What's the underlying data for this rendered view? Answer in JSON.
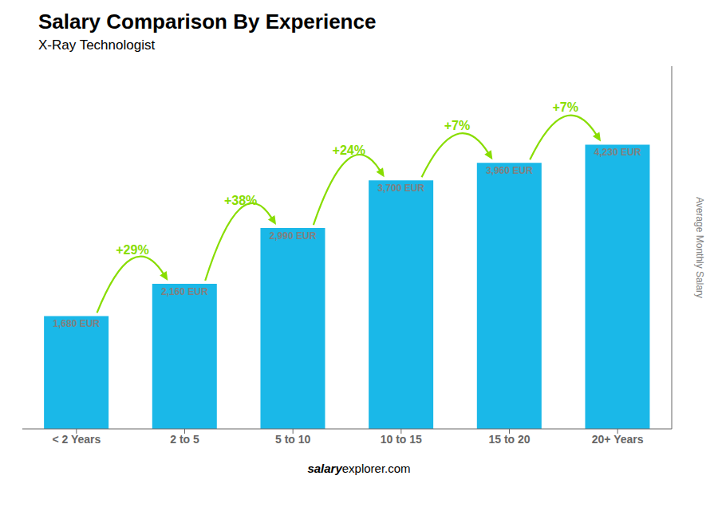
{
  "chart_data": {
    "type": "bar",
    "title": "Salary Comparison By Experience",
    "subtitle": "X-Ray Technologist",
    "y_label": "Average Monthly Salary",
    "categories": [
      "< 2 Years",
      "2 to 5",
      "5 to 10",
      "10 to 15",
      "15 to 20",
      "20+ Years"
    ],
    "values": [
      1680,
      2160,
      2990,
      3700,
      3960,
      4230
    ],
    "value_labels": [
      "1,680 EUR",
      "2,160 EUR",
      "2,990 EUR",
      "3,700 EUR",
      "3,960 EUR",
      "4,230 EUR"
    ],
    "data_labels": true,
    "color": "#1ab8e8",
    "ylim": [
      0,
      5400
    ],
    "tick_labels": "x",
    "grid": false,
    "annotations": [
      {
        "text": "+29%",
        "from": "< 2 Years",
        "to": "2 to 5",
        "color": "#88dd00"
      },
      {
        "text": "+38%",
        "from": "2 to 5",
        "to": "5 to 10",
        "color": "#88dd00"
      },
      {
        "text": "+24%",
        "from": "5 to 10",
        "to": "10 to 15",
        "color": "#88dd00"
      },
      {
        "text": "+7%",
        "from": "10 to 15",
        "to": "15 to 20",
        "color": "#88dd00"
      },
      {
        "text": "+7%",
        "from": "15 to 20",
        "to": "20+ Years",
        "color": "#88dd00"
      }
    ],
    "footer": [
      "salary",
      "explorer.com"
    ]
  }
}
